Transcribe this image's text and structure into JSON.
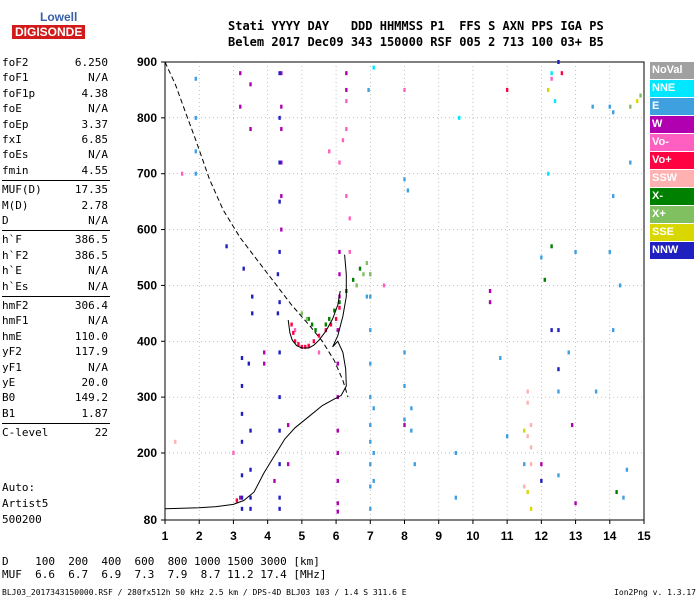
{
  "logo": {
    "line1": "Lowell",
    "line2": "DIGISONDE"
  },
  "header": {
    "row1": "Stati YYYY DAY   DDD HHMMSS P1  FFS S AXN PPS IGA PS",
    "row2": "Belem 2017 Dec09 343 150000 RSF 005 2 713 100 03+ B5"
  },
  "parameters": [
    {
      "k": "foF2",
      "v": "6.250"
    },
    {
      "k": "foF1",
      "v": "N/A"
    },
    {
      "k": "foF1p",
      "v": "4.38"
    },
    {
      "k": "foE",
      "v": "N/A"
    },
    {
      "k": "foEp",
      "v": "3.37"
    },
    {
      "k": "fxI",
      "v": "6.85"
    },
    {
      "k": "foEs",
      "v": "N/A"
    },
    {
      "k": "fmin",
      "v": "4.55"
    },
    {
      "k": "MUF(D)",
      "v": "17.35"
    },
    {
      "k": "M(D)",
      "v": "2.78"
    },
    {
      "k": "D",
      "v": "N/A"
    },
    {
      "k": "h`F",
      "v": "386.5"
    },
    {
      "k": "h`F2",
      "v": "386.5"
    },
    {
      "k": "h`E",
      "v": "N/A"
    },
    {
      "k": "h`Es",
      "v": "N/A"
    },
    {
      "k": "hmF2",
      "v": "306.4"
    },
    {
      "k": "hmF1",
      "v": "N/A"
    },
    {
      "k": "hmE",
      "v": "110.0"
    },
    {
      "k": "yF2",
      "v": "117.9"
    },
    {
      "k": "yF1",
      "v": "N/A"
    },
    {
      "k": "yE",
      "v": "20.0"
    },
    {
      "k": "B0",
      "v": "149.2"
    },
    {
      "k": "B1",
      "v": "1.87"
    },
    {
      "k": "C-level",
      "v": "22"
    }
  ],
  "auto": {
    "line1": "Auto:",
    "line2": "Artist5",
    "line3": "500200"
  },
  "legend": [
    {
      "label": "NoVal",
      "color": "#a0a0a0"
    },
    {
      "label": "NNE",
      "color": "#00e8ff"
    },
    {
      "label": "E",
      "color": "#3fa0e0"
    },
    {
      "label": "W",
      "color": "#b000b0"
    },
    {
      "label": "Vo-",
      "color": "#ff5fc0"
    },
    {
      "label": "Vo+",
      "color": "#ff0040"
    },
    {
      "label": "SSW",
      "color": "#ffb0b0"
    },
    {
      "label": "X-",
      "color": "#008000"
    },
    {
      "label": "X+",
      "color": "#80c060"
    },
    {
      "label": "SSE",
      "color": "#d8d800"
    },
    {
      "label": "NNW",
      "color": "#2020c0"
    }
  ],
  "dtable": {
    "row1": "D    100  200  400  600  800 1000 1500 3000 [km]",
    "row2": "MUF  6.6  6.7  6.9  7.3  7.9  8.7 11.2 17.4 [MHz]"
  },
  "footer": "BLJ03_2017343150000.RSF / 280fx512h 50 kHz 2.5 km / DPS-4D BLJ03 103 / 1.4 S 311.6 E",
  "version": "Ion2Png v. 1.3.17",
  "chart_data": {
    "type": "scatter",
    "x_ticks": [
      "1",
      "2",
      "3",
      "4",
      "5",
      "6",
      "7",
      "8",
      "9",
      "10",
      "11",
      "12",
      "13",
      "14",
      "15"
    ],
    "y_ticks": [
      "80",
      "200",
      "300",
      "400",
      "500",
      "600",
      "700",
      "800",
      "900"
    ],
    "xlim": [
      1,
      15
    ],
    "ylim": [
      80,
      900
    ],
    "grid": true,
    "series": [
      {
        "name": "W",
        "points": [
          [
            4.4,
            880
          ],
          [
            4.4,
            820
          ],
          [
            4.4,
            780
          ],
          [
            4.4,
            720
          ],
          [
            4.4,
            660
          ],
          [
            4.4,
            600
          ],
          [
            3.5,
            860
          ],
          [
            3.5,
            780
          ],
          [
            3.2,
            880
          ],
          [
            3.2,
            820
          ],
          [
            6.3,
            880
          ],
          [
            6.3,
            850
          ],
          [
            6.1,
            560
          ],
          [
            6.1,
            520
          ],
          [
            6.1,
            480
          ],
          [
            6.05,
            420
          ],
          [
            6.05,
            360
          ],
          [
            6.05,
            300
          ],
          [
            6.05,
            240
          ],
          [
            6.05,
            200
          ],
          [
            6.05,
            150
          ],
          [
            6.05,
            110
          ],
          [
            6.05,
            95
          ],
          [
            3.9,
            380
          ],
          [
            3.9,
            360
          ],
          [
            3.2,
            120
          ],
          [
            4.6,
            250
          ],
          [
            12.9,
            250
          ],
          [
            12.0,
            180
          ],
          [
            10.5,
            490
          ],
          [
            10.5,
            470
          ],
          [
            13.0,
            110
          ],
          [
            4.2,
            150
          ],
          [
            4.6,
            180
          ],
          [
            8.0,
            250
          ]
        ]
      },
      {
        "name": "NNW",
        "points": [
          [
            4.35,
            880
          ],
          [
            4.35,
            800
          ],
          [
            4.35,
            720
          ],
          [
            4.35,
            650
          ],
          [
            4.35,
            560
          ],
          [
            4.35,
            470
          ],
          [
            4.35,
            380
          ],
          [
            4.35,
            300
          ],
          [
            4.35,
            240
          ],
          [
            4.35,
            180
          ],
          [
            4.35,
            120
          ],
          [
            4.35,
            100
          ],
          [
            3.25,
            370
          ],
          [
            3.25,
            320
          ],
          [
            3.25,
            270
          ],
          [
            3.25,
            220
          ],
          [
            3.25,
            160
          ],
          [
            3.25,
            120
          ],
          [
            3.25,
            100
          ],
          [
            3.55,
            480
          ],
          [
            3.55,
            450
          ],
          [
            3.45,
            360
          ],
          [
            3.5,
            240
          ],
          [
            3.5,
            170
          ],
          [
            3.5,
            120
          ],
          [
            3.5,
            100
          ],
          [
            2.8,
            570
          ],
          [
            3.3,
            530
          ],
          [
            12.5,
            900
          ],
          [
            12.5,
            420
          ],
          [
            12.3,
            420
          ],
          [
            12.5,
            350
          ],
          [
            12.0,
            150
          ],
          [
            4.3,
            520
          ],
          [
            4.3,
            450
          ]
        ]
      },
      {
        "name": "E",
        "points": [
          [
            1.9,
            870
          ],
          [
            1.9,
            800
          ],
          [
            1.9,
            740
          ],
          [
            1.9,
            700
          ],
          [
            6.95,
            850
          ],
          [
            7.0,
            520
          ],
          [
            7.0,
            480
          ],
          [
            7.0,
            420
          ],
          [
            7.0,
            360
          ],
          [
            7.0,
            300
          ],
          [
            7.0,
            250
          ],
          [
            7.0,
            220
          ],
          [
            7.0,
            180
          ],
          [
            7.0,
            140
          ],
          [
            7.0,
            100
          ],
          [
            7.1,
            280
          ],
          [
            7.1,
            200
          ],
          [
            7.1,
            150
          ],
          [
            6.9,
            480
          ],
          [
            8.0,
            380
          ],
          [
            8.0,
            320
          ],
          [
            8.0,
            260
          ],
          [
            8.2,
            280
          ],
          [
            8.2,
            240
          ],
          [
            9.5,
            120
          ],
          [
            9.5,
            200
          ],
          [
            12.0,
            550
          ],
          [
            12.5,
            310
          ],
          [
            12.5,
            160
          ],
          [
            13.5,
            820
          ],
          [
            14.0,
            820
          ],
          [
            14.1,
            810
          ],
          [
            14.0,
            560
          ],
          [
            14.1,
            660
          ],
          [
            14.3,
            500
          ],
          [
            14.1,
            420
          ],
          [
            12.8,
            380
          ],
          [
            13.6,
            310
          ],
          [
            14.6,
            720
          ],
          [
            14.5,
            170
          ],
          [
            14.4,
            120
          ],
          [
            13.0,
            560
          ],
          [
            8.0,
            690
          ],
          [
            8.1,
            670
          ],
          [
            8.3,
            180
          ],
          [
            11.0,
            230
          ],
          [
            10.8,
            370
          ],
          [
            11.5,
            180
          ]
        ]
      },
      {
        "name": "NNE",
        "points": [
          [
            7.1,
            890
          ],
          [
            9.6,
            800
          ],
          [
            12.2,
            700
          ],
          [
            12.3,
            880
          ],
          [
            12.4,
            830
          ]
        ]
      },
      {
        "name": "SSW",
        "points": [
          [
            11.6,
            310
          ],
          [
            11.6,
            290
          ],
          [
            11.7,
            250
          ],
          [
            11.6,
            230
          ],
          [
            11.7,
            210
          ],
          [
            11.7,
            180
          ],
          [
            11.5,
            140
          ],
          [
            1.3,
            220
          ]
        ]
      },
      {
        "name": "Vo-",
        "points": [
          [
            6.3,
            830
          ],
          [
            6.3,
            780
          ],
          [
            6.1,
            720
          ],
          [
            6.3,
            660
          ],
          [
            1.5,
            700
          ],
          [
            3.0,
            200
          ],
          [
            12.3,
            870
          ],
          [
            6.4,
            620
          ],
          [
            6.4,
            560
          ],
          [
            4.8,
            420
          ],
          [
            5.5,
            380
          ],
          [
            6.2,
            760
          ],
          [
            5.8,
            740
          ],
          [
            8.0,
            850
          ],
          [
            7.4,
            500
          ]
        ]
      },
      {
        "name": "Vo+",
        "points": [
          [
            4.9,
            395
          ],
          [
            5.0,
            390
          ],
          [
            5.1,
            390
          ],
          [
            5.2,
            392
          ],
          [
            5.35,
            400
          ],
          [
            5.5,
            410
          ],
          [
            5.7,
            420
          ],
          [
            5.85,
            430
          ],
          [
            6.0,
            440
          ],
          [
            6.1,
            460
          ],
          [
            4.7,
            430
          ],
          [
            4.75,
            415
          ],
          [
            4.8,
            400
          ],
          [
            3.1,
            115
          ],
          [
            11.0,
            850
          ],
          [
            12.6,
            880
          ]
        ]
      },
      {
        "name": "X-",
        "points": [
          [
            5.7,
            430
          ],
          [
            5.8,
            440
          ],
          [
            5.95,
            455
          ],
          [
            6.1,
            470
          ],
          [
            6.3,
            490
          ],
          [
            6.5,
            510
          ],
          [
            6.7,
            530
          ],
          [
            5.2,
            440
          ],
          [
            5.3,
            430
          ],
          [
            5.4,
            420
          ],
          [
            12.1,
            510
          ],
          [
            12.3,
            570
          ],
          [
            14.2,
            130
          ]
        ]
      },
      {
        "name": "X+",
        "points": [
          [
            6.6,
            500
          ],
          [
            6.8,
            520
          ],
          [
            6.9,
            540
          ],
          [
            7.0,
            520
          ],
          [
            5.0,
            450
          ],
          [
            5.15,
            440
          ],
          [
            14.9,
            840
          ],
          [
            14.6,
            820
          ]
        ]
      },
      {
        "name": "SSE",
        "points": [
          [
            11.6,
            130
          ],
          [
            11.7,
            100
          ],
          [
            11.5,
            240
          ],
          [
            14.8,
            830
          ],
          [
            12.2,
            850
          ]
        ]
      }
    ],
    "lines": [
      {
        "name": "h-profile",
        "style": "solid",
        "points": [
          [
            1.0,
            100
          ],
          [
            1.5,
            101
          ],
          [
            2.0,
            102
          ],
          [
            2.5,
            104
          ],
          [
            3.0,
            108
          ],
          [
            3.3,
            115
          ],
          [
            3.6,
            130
          ],
          [
            3.9,
            165
          ],
          [
            4.2,
            195
          ],
          [
            4.5,
            225
          ],
          [
            4.8,
            245
          ],
          [
            5.2,
            265
          ],
          [
            5.6,
            285
          ],
          [
            5.9,
            295
          ],
          [
            6.15,
            303
          ],
          [
            6.3,
            320
          ],
          [
            6.28,
            350
          ],
          [
            6.2,
            380
          ],
          [
            6.05,
            400
          ],
          [
            5.9,
            390
          ],
          [
            6.05,
            410
          ],
          [
            6.2,
            445
          ],
          [
            6.3,
            480
          ],
          [
            6.3,
            520
          ],
          [
            6.25,
            555
          ]
        ]
      },
      {
        "name": "virtual-height",
        "style": "solid",
        "points": [
          [
            4.6,
            438
          ],
          [
            4.65,
            415
          ],
          [
            4.72,
            402
          ],
          [
            4.85,
            392
          ],
          [
            5.0,
            388
          ],
          [
            5.2,
            388
          ],
          [
            5.35,
            393
          ],
          [
            5.5,
            402
          ],
          [
            5.7,
            418
          ],
          [
            5.9,
            440
          ],
          [
            6.05,
            465
          ],
          [
            6.12,
            490
          ]
        ]
      },
      {
        "name": "muf-curve",
        "style": "dashed",
        "points": [
          [
            1.0,
            900
          ],
          [
            1.3,
            860
          ],
          [
            1.6,
            810
          ],
          [
            1.9,
            760
          ],
          [
            2.3,
            690
          ],
          [
            2.7,
            635
          ],
          [
            3.2,
            585
          ],
          [
            3.7,
            545
          ],
          [
            4.2,
            505
          ],
          [
            4.7,
            465
          ],
          [
            5.2,
            430
          ],
          [
            5.6,
            400
          ],
          [
            5.95,
            365
          ],
          [
            6.2,
            330
          ],
          [
            6.35,
            300
          ]
        ]
      }
    ]
  }
}
